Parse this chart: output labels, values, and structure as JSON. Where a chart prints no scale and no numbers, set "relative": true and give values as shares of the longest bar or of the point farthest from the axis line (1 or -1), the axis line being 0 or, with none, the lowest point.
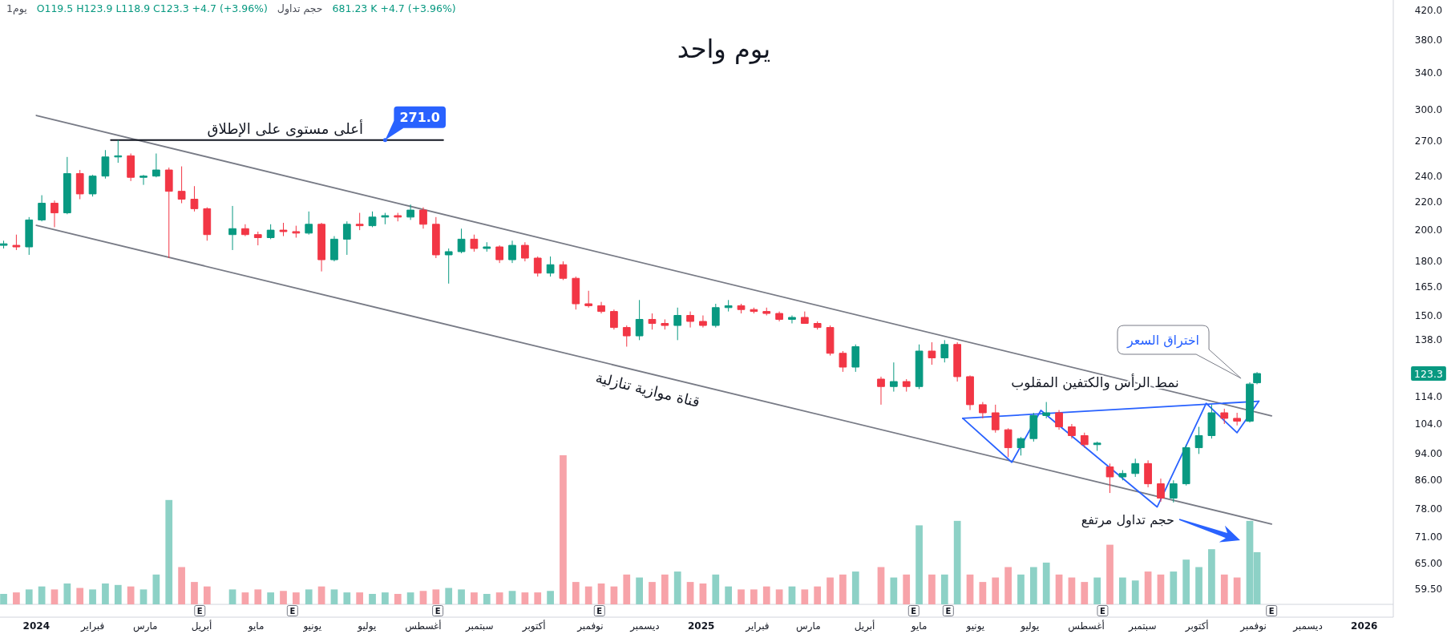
{
  "chart_data": [
    {
      "type": "candlestick",
      "title": "يوم واحد",
      "annotations": [
        "1يوم",
        "O119.5 H123.9 L118.9 C123.3 +4.7 (+3.96%)",
        "حجم تداول",
        "681.23 K +4.7 (+3.96%)",
        "قناة موازية تنازلية",
        "نمط الرأس والكتفين المقلوب",
        "اختراق السعر",
        "123.3",
        {
          "text": "أعلى مستوى على الإطلاق",
          "x": "2024-05-17",
          "y": 271
        },
        {
          "text": "271.0",
          "x": "2024-07-11",
          "y": 271
        },
        {
          "text": "E",
          "x": "2024-03-31"
        },
        {
          "text": "E",
          "x": "2024-05-21"
        },
        {
          "text": "E",
          "x": "2024-08-09"
        },
        {
          "text": "E",
          "x": "2024-11-06"
        },
        {
          "text": "E",
          "x": "2025-04-28"
        },
        {
          "text": "E",
          "x": "2025-05-17"
        },
        {
          "text": "E",
          "x": "2025-08-10"
        },
        {
          "text": "E",
          "x": "2025-11-11"
        }
      ],
      "x": [
        "2023-12-14",
        "2023-12-21",
        "2023-12-28",
        "2024-01-04",
        "2024-01-11",
        "2024-01-18",
        "2024-01-25",
        "2024-02-01",
        "2024-02-08",
        "2024-02-15",
        "2024-02-22",
        "2024-02-29",
        "2024-03-07",
        "2024-03-14",
        "2024-03-21",
        "2024-03-28",
        "2024-04-04",
        "2024-04-18",
        "2024-04-25",
        "2024-05-02",
        "2024-05-09",
        "2024-05-16",
        "2024-05-23",
        "2024-05-30",
        "2024-06-06",
        "2024-06-13",
        "2024-06-20",
        "2024-06-27",
        "2024-07-04",
        "2024-07-11",
        "2024-07-18",
        "2024-07-25",
        "2024-08-01",
        "2024-08-08",
        "2024-08-15",
        "2024-08-22",
        "2024-08-29",
        "2024-09-05",
        "2024-09-12",
        "2024-09-19",
        "2024-09-26",
        "2024-10-03",
        "2024-10-10",
        "2024-10-17",
        "2024-10-24",
        "2024-10-31",
        "2024-11-07",
        "2024-11-14",
        "2024-11-21",
        "2024-11-28",
        "2024-12-05",
        "2024-12-12",
        "2024-12-19",
        "2024-12-26",
        "2025-01-02",
        "2025-01-09",
        "2025-01-16",
        "2025-01-23",
        "2025-01-30",
        "2025-02-06",
        "2025-02-13",
        "2025-02-20",
        "2025-02-27",
        "2025-03-06",
        "2025-03-13",
        "2025-03-20",
        "2025-03-27",
        "2025-04-10",
        "2025-04-17",
        "2025-04-24",
        "2025-05-01",
        "2025-05-08",
        "2025-05-15",
        "2025-05-22",
        "2025-05-29",
        "2025-06-05",
        "2025-06-12",
        "2025-06-19",
        "2025-06-26",
        "2025-07-03",
        "2025-07-10",
        "2025-07-17",
        "2025-07-24",
        "2025-07-31",
        "2025-08-07",
        "2025-08-14",
        "2025-08-21",
        "2025-08-28",
        "2025-09-04",
        "2025-09-11",
        "2025-09-18",
        "2025-09-25",
        "2025-10-02",
        "2025-10-09",
        "2025-10-16",
        "2025-10-23",
        "2025-10-30",
        "2025-11-03"
      ],
      "ohlc": [
        [
          190,
          193,
          188,
          191
        ],
        [
          190,
          197,
          187,
          189
        ],
        [
          189,
          209,
          184,
          207
        ],
        [
          207,
          225,
          206,
          219
        ],
        [
          219,
          221,
          202,
          212
        ],
        [
          212,
          256,
          211,
          242
        ],
        [
          242,
          245,
          222,
          226
        ],
        [
          226,
          241,
          224,
          240
        ],
        [
          240,
          262,
          238,
          256
        ],
        [
          256,
          271,
          251,
          257
        ],
        [
          257,
          259,
          236,
          239
        ],
        [
          239,
          241,
          233,
          240
        ],
        [
          240,
          259,
          239,
          245
        ],
        [
          245,
          247,
          182,
          228
        ],
        [
          228,
          248,
          219,
          222
        ],
        [
          222,
          232,
          213,
          215
        ],
        [
          215,
          216,
          193,
          197
        ],
        [
          197,
          217,
          187,
          201
        ],
        [
          201,
          204,
          196,
          197
        ],
        [
          197,
          199,
          190,
          195
        ],
        [
          195,
          204,
          194,
          200
        ],
        [
          200,
          205,
          196,
          199
        ],
        [
          199,
          203,
          195,
          198
        ],
        [
          198,
          213,
          197,
          204
        ],
        [
          204,
          205,
          174,
          181
        ],
        [
          181,
          196,
          180,
          194
        ],
        [
          194,
          206,
          184,
          204
        ],
        [
          204,
          212,
          200,
          203
        ],
        [
          203,
          213,
          202,
          209
        ],
        [
          209,
          212,
          204,
          210
        ],
        [
          210,
          212,
          206,
          209
        ],
        [
          209,
          218,
          207,
          214
        ],
        [
          214,
          216,
          201,
          204
        ],
        [
          204,
          209,
          182,
          184
        ],
        [
          184,
          188,
          167,
          186
        ],
        [
          186,
          201,
          185,
          194
        ],
        [
          194,
          197,
          186,
          188
        ],
        [
          188,
          192,
          186,
          189
        ],
        [
          189,
          190,
          179,
          181
        ],
        [
          181,
          193,
          179,
          190
        ],
        [
          190,
          192,
          180,
          182
        ],
        [
          182,
          183,
          171,
          173
        ],
        [
          173,
          183,
          171,
          178
        ],
        [
          178,
          180,
          169,
          170
        ],
        [
          170,
          171,
          153,
          156
        ],
        [
          156,
          163,
          154,
          155
        ],
        [
          155,
          157,
          151,
          152
        ],
        [
          152,
          153,
          143,
          144
        ],
        [
          144,
          145,
          135,
          140
        ],
        [
          140,
          158,
          138,
          148
        ],
        [
          148,
          151,
          143,
          146
        ],
        [
          146,
          148,
          143,
          145
        ],
        [
          145,
          154,
          138,
          150
        ],
        [
          150,
          152,
          144,
          147
        ],
        [
          147,
          150,
          144,
          145
        ],
        [
          145,
          156,
          144,
          154
        ],
        [
          154,
          158,
          152,
          155
        ],
        [
          155,
          156,
          151,
          153
        ],
        [
          153,
          154,
          151,
          152
        ],
        [
          152,
          154,
          150,
          151
        ],
        [
          151,
          152,
          147,
          148
        ],
        [
          148,
          150,
          146,
          149
        ],
        [
          149,
          152,
          146,
          146
        ],
        [
          146,
          147,
          143,
          144
        ],
        [
          144,
          145,
          131,
          132
        ],
        [
          132,
          133,
          124,
          126
        ],
        [
          126,
          136,
          124,
          135
        ],
        [
          121,
          122,
          111,
          118
        ],
        [
          118,
          128,
          116,
          120
        ],
        [
          120,
          121,
          116,
          118
        ],
        [
          118,
          136,
          117,
          133
        ],
        [
          133,
          137,
          127,
          130
        ],
        [
          130,
          138,
          128,
          136
        ],
        [
          136,
          137,
          120,
          122
        ],
        [
          122,
          122.5,
          109,
          111
        ],
        [
          111,
          112,
          106,
          108
        ],
        [
          108,
          111,
          101,
          102
        ],
        [
          102,
          102.5,
          93,
          96
        ],
        [
          96,
          99.5,
          93.5,
          99
        ],
        [
          99,
          108,
          98,
          107
        ],
        [
          107,
          112,
          106,
          108
        ],
        [
          108,
          109,
          102,
          103
        ],
        [
          103,
          104,
          99,
          100
        ],
        [
          100,
          101,
          96,
          97
        ],
        [
          97,
          98,
          95,
          97.5
        ],
        [
          90,
          91,
          82.4,
          87
        ],
        [
          87,
          89,
          86,
          88
        ],
        [
          88,
          92.5,
          87,
          91
        ],
        [
          91,
          92,
          84,
          85
        ],
        [
          85,
          86.5,
          80,
          81
        ],
        [
          81,
          86,
          79.8,
          85
        ],
        [
          85,
          97,
          84.5,
          96
        ],
        [
          96,
          103,
          94,
          100
        ],
        [
          100,
          111,
          99,
          108
        ],
        [
          108,
          109.5,
          104,
          106
        ],
        [
          106,
          108,
          103.5,
          105
        ],
        [
          105,
          119.7,
          104.5,
          119
        ],
        [
          119.5,
          123.9,
          118.9,
          123.3
        ]
      ],
      "colors": [
        "#089981",
        "#f23645",
        "#089981",
        "#089981",
        "#f23645",
        "#089981",
        "#f23645",
        "#089981",
        "#089981",
        "#089981",
        "#f23645",
        "#089981",
        "#089981",
        "#f23645",
        "#f23645",
        "#f23645",
        "#f23645",
        "#089981",
        "#f23645",
        "#f23645",
        "#089981",
        "#f23645",
        "#f23645",
        "#089981",
        "#f23645",
        "#089981",
        "#089981",
        "#f23645",
        "#089981",
        "#089981",
        "#f23645",
        "#089981",
        "#f23645",
        "#f23645",
        "#089981",
        "#089981",
        "#f23645",
        "#089981",
        "#f23645",
        "#089981",
        "#f23645",
        "#f23645",
        "#089981",
        "#f23645",
        "#f23645",
        "#f23645",
        "#f23645",
        "#f23645",
        "#f23645",
        "#089981",
        "#f23645",
        "#f23645",
        "#089981",
        "#f23645",
        "#f23645",
        "#089981",
        "#089981",
        "#f23645",
        "#f23645",
        "#f23645",
        "#f23645",
        "#089981",
        "#f23645",
        "#f23645",
        "#f23645",
        "#f23645",
        "#089981",
        "#f23645",
        "#089981",
        "#f23645",
        "#089981",
        "#f23645",
        "#089981",
        "#f23645",
        "#f23645",
        "#f23645",
        "#f23645",
        "#f23645",
        "#089981",
        "#089981",
        "#089981",
        "#f23645",
        "#f23645",
        "#f23645",
        "#089981",
        "#f23645",
        "#089981",
        "#089981",
        "#f23645",
        "#f23645",
        "#089981",
        "#089981",
        "#089981",
        "#089981",
        "#f23645",
        "#f23645",
        "#089981",
        "#089981"
      ],
      "series": [
        {
          "type": "line",
          "x": [
            "2024-01-01",
            "2025-11-11"
          ],
          "values": [
            294.5,
            106.9
          ],
          "color": "#787b86"
        },
        {
          "type": "line",
          "x": [
            "2024-01-01",
            "2025-11-11"
          ],
          "values": [
            203.3,
            74.2
          ],
          "color": "#787b86"
        },
        {
          "type": "line",
          "x": [
            "2024-02-11",
            "2024-08-12"
          ],
          "values": [
            271,
            271
          ],
          "color": "#131722"
        },
        {
          "type": "line",
          "x": [
            "2025-05-25",
            "2025-06-21",
            "2025-07-07",
            "2025-09-09",
            "2025-10-06",
            "2025-10-23",
            "2025-11-04"
          ],
          "values": [
            106,
            91.4,
            108.9,
            78.6,
            111.5,
            101,
            112.3
          ],
          "color": "#2962ff"
        },
        {
          "type": "line",
          "x": [
            "2025-05-25",
            "2025-11-04"
          ],
          "values": [
            106,
            112.3
          ],
          "color": "#2962ff"
        }
      ],
      "xlim": [
        "2023-12-12",
        "2026-01-17"
      ],
      "xticks": [
        {
          "value": "2024-01-01",
          "label": "2024"
        },
        {
          "value": "2024-02-01",
          "label": "فبراير"
        },
        {
          "value": "2024-03-01",
          "label": "مارس"
        },
        {
          "value": "2024-04-01",
          "label": "أبريل"
        },
        {
          "value": "2024-05-01",
          "label": "مايو"
        },
        {
          "value": "2024-06-01",
          "label": "يونيو"
        },
        {
          "value": "2024-07-01",
          "label": "يوليو"
        },
        {
          "value": "2024-08-01",
          "label": "أغسطس"
        },
        {
          "value": "2024-09-01",
          "label": "سبتمبر"
        },
        {
          "value": "2024-10-01",
          "label": "أكتوبر"
        },
        {
          "value": "2024-11-01",
          "label": "نوفمبر"
        },
        {
          "value": "2024-12-01",
          "label": "ديسمبر"
        },
        {
          "value": "2025-01-01",
          "label": "2025"
        },
        {
          "value": "2025-02-01",
          "label": "فبراير"
        },
        {
          "value": "2025-03-01",
          "label": "مارس"
        },
        {
          "value": "2025-04-01",
          "label": "أبريل"
        },
        {
          "value": "2025-05-01",
          "label": "مايو"
        },
        {
          "value": "2025-06-01",
          "label": "يونيو"
        },
        {
          "value": "2025-07-01",
          "label": "يوليو"
        },
        {
          "value": "2025-08-01",
          "label": "أغسطس"
        },
        {
          "value": "2025-09-01",
          "label": "سبتمبر"
        },
        {
          "value": "2025-10-01",
          "label": "أكتوبر"
        },
        {
          "value": "2025-11-01",
          "label": "نوفمبر"
        },
        {
          "value": "2025-12-01",
          "label": "ديسمبر"
        },
        {
          "value": "2026-01-01",
          "label": "2026"
        }
      ],
      "ylim": [
        54.2,
        434.7
      ],
      "yticks": [
        {
          "value": 420,
          "label": "420.0"
        },
        {
          "value": 380,
          "label": "380.0"
        },
        {
          "value": 340,
          "label": "340.0"
        },
        {
          "value": 300,
          "label": "300.0"
        },
        {
          "value": 270,
          "label": "270.0"
        },
        {
          "value": 240,
          "label": "240.0"
        },
        {
          "value": 220,
          "label": "220.0"
        },
        {
          "value": 200,
          "label": "200.0"
        },
        {
          "value": 180,
          "label": "180.0"
        },
        {
          "value": 165,
          "label": "165.0"
        },
        {
          "value": 150,
          "label": "150.0"
        },
        {
          "value": 138,
          "label": "138.0"
        },
        {
          "value": 114,
          "label": "114.0"
        },
        {
          "value": 104,
          "label": "104.0"
        },
        {
          "value": 94,
          "label": "94.00"
        },
        {
          "value": 86,
          "label": "86.00"
        },
        {
          "value": 78,
          "label": "78.00"
        },
        {
          "value": 71,
          "label": "71.00"
        },
        {
          "value": 65,
          "label": "65.00"
        },
        {
          "value": 59.5,
          "label": "59.50"
        }
      ],
      "log": "y"
    },
    {
      "type": "bar",
      "relative": true,
      "x": [
        "2023-12-14",
        "2023-12-21",
        "2023-12-28",
        "2024-01-04",
        "2024-01-11",
        "2024-01-18",
        "2024-01-25",
        "2024-02-01",
        "2024-02-08",
        "2024-02-15",
        "2024-02-22",
        "2024-02-29",
        "2024-03-07",
        "2024-03-14",
        "2024-03-21",
        "2024-03-28",
        "2024-04-04",
        "2024-04-18",
        "2024-04-25",
        "2024-05-02",
        "2024-05-09",
        "2024-05-16",
        "2024-05-23",
        "2024-05-30",
        "2024-06-06",
        "2024-06-13",
        "2024-06-20",
        "2024-06-27",
        "2024-07-04",
        "2024-07-11",
        "2024-07-18",
        "2024-07-25",
        "2024-08-01",
        "2024-08-08",
        "2024-08-15",
        "2024-08-22",
        "2024-08-29",
        "2024-09-05",
        "2024-09-12",
        "2024-09-19",
        "2024-09-26",
        "2024-10-03",
        "2024-10-10",
        "2024-10-17",
        "2024-10-24",
        "2024-10-31",
        "2024-11-07",
        "2024-11-14",
        "2024-11-21",
        "2024-11-28",
        "2024-12-05",
        "2024-12-12",
        "2024-12-19",
        "2024-12-26",
        "2025-01-02",
        "2025-01-09",
        "2025-01-16",
        "2025-01-23",
        "2025-01-30",
        "2025-02-06",
        "2025-02-13",
        "2025-02-20",
        "2025-02-27",
        "2025-03-06",
        "2025-03-13",
        "2025-03-20",
        "2025-03-27",
        "2025-04-10",
        "2025-04-17",
        "2025-04-24",
        "2025-05-01",
        "2025-05-08",
        "2025-05-15",
        "2025-05-22",
        "2025-05-29",
        "2025-06-05",
        "2025-06-12",
        "2025-06-19",
        "2025-06-26",
        "2025-07-03",
        "2025-07-10",
        "2025-07-17",
        "2025-07-24",
        "2025-07-31",
        "2025-08-07",
        "2025-08-14",
        "2025-08-21",
        "2025-08-28",
        "2025-09-04",
        "2025-09-11",
        "2025-09-18",
        "2025-09-25",
        "2025-10-02",
        "2025-10-09",
        "2025-10-16",
        "2025-10-23",
        "2025-10-30",
        "2025-11-03"
      ],
      "values": [
        0.07,
        0.08,
        0.1,
        0.12,
        0.1,
        0.14,
        0.11,
        0.1,
        0.14,
        0.13,
        0.12,
        0.1,
        0.2,
        0.7,
        0.25,
        0.15,
        0.12,
        0.1,
        0.08,
        0.1,
        0.08,
        0.09,
        0.08,
        0.1,
        0.12,
        0.1,
        0.08,
        0.08,
        0.07,
        0.08,
        0.07,
        0.08,
        0.09,
        0.1,
        0.11,
        0.1,
        0.08,
        0.07,
        0.08,
        0.09,
        0.08,
        0.08,
        0.09,
        1,
        0.15,
        0.12,
        0.14,
        0.12,
        0.2,
        0.18,
        0.15,
        0.2,
        0.22,
        0.15,
        0.14,
        0.2,
        0.12,
        0.1,
        0.1,
        0.12,
        0.1,
        0.12,
        0.1,
        0.12,
        0.18,
        0.2,
        0.22,
        0.25,
        0.18,
        0.2,
        0.53,
        0.2,
        0.2,
        0.56,
        0.2,
        0.15,
        0.18,
        0.25,
        0.2,
        0.25,
        0.28,
        0.2,
        0.18,
        0.15,
        0.18,
        0.4,
        0.18,
        0.16,
        0.22,
        0.2,
        0.22,
        0.3,
        0.25,
        0.37,
        0.2,
        0.18,
        0.56,
        0.35
      ],
      "colors": [
        "#8dd1c6",
        "#f7a3a9",
        "#8dd1c6",
        "#8dd1c6",
        "#f7a3a9",
        "#8dd1c6",
        "#f7a3a9",
        "#8dd1c6",
        "#8dd1c6",
        "#8dd1c6",
        "#f7a3a9",
        "#8dd1c6",
        "#8dd1c6",
        "#8dd1c6",
        "#f7a3a9",
        "#f7a3a9",
        "#f7a3a9",
        "#8dd1c6",
        "#f7a3a9",
        "#f7a3a9",
        "#8dd1c6",
        "#f7a3a9",
        "#f7a3a9",
        "#8dd1c6",
        "#f7a3a9",
        "#8dd1c6",
        "#8dd1c6",
        "#f7a3a9",
        "#8dd1c6",
        "#8dd1c6",
        "#f7a3a9",
        "#8dd1c6",
        "#f7a3a9",
        "#f7a3a9",
        "#8dd1c6",
        "#8dd1c6",
        "#f7a3a9",
        "#8dd1c6",
        "#f7a3a9",
        "#8dd1c6",
        "#f7a3a9",
        "#f7a3a9",
        "#8dd1c6",
        "#f7a3a9",
        "#f7a3a9",
        "#f7a3a9",
        "#f7a3a9",
        "#f7a3a9",
        "#f7a3a9",
        "#8dd1c6",
        "#f7a3a9",
        "#f7a3a9",
        "#8dd1c6",
        "#f7a3a9",
        "#f7a3a9",
        "#8dd1c6",
        "#8dd1c6",
        "#f7a3a9",
        "#f7a3a9",
        "#f7a3a9",
        "#f7a3a9",
        "#8dd1c6",
        "#f7a3a9",
        "#f7a3a9",
        "#f7a3a9",
        "#f7a3a9",
        "#8dd1c6",
        "#f7a3a9",
        "#8dd1c6",
        "#f7a3a9",
        "#8dd1c6",
        "#f7a3a9",
        "#8dd1c6",
        "#8dd1c6",
        "#f7a3a9",
        "#f7a3a9",
        "#f7a3a9",
        "#f7a3a9",
        "#8dd1c6",
        "#8dd1c6",
        "#8dd1c6",
        "#f7a3a9",
        "#f7a3a9",
        "#f7a3a9",
        "#8dd1c6",
        "#f7a3a9",
        "#8dd1c6",
        "#8dd1c6",
        "#f7a3a9",
        "#f7a3a9",
        "#8dd1c6",
        "#8dd1c6",
        "#8dd1c6",
        "#8dd1c6",
        "#f7a3a9",
        "#f7a3a9",
        "#8dd1c6",
        "#8dd1c6"
      ],
      "xlim": [
        "2023-12-12",
        "2026-01-17"
      ],
      "tick_labels": false,
      "annotations": [
        "حجم تداول مرتفع"
      ]
    }
  ]
}
